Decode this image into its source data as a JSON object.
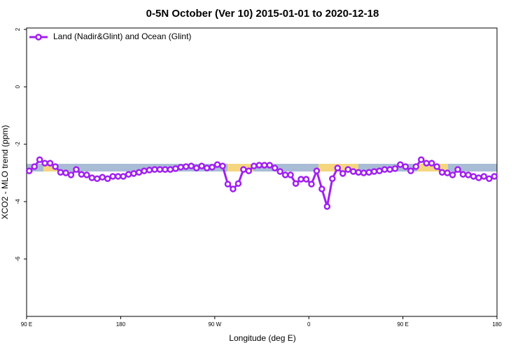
{
  "chart_data": {
    "type": "line",
    "title": "0-5N October (Ver 10)   2015-01-01 to 2020-12-18",
    "x_label": "Longitude (deg E)",
    "y_label": "XCO2 - MLO trend (ppm)",
    "xlim": [
      90,
      540
    ],
    "ylim": [
      -8,
      2.05
    ],
    "xticks": [
      {
        "value": 90,
        "label": "90 E"
      },
      180,
      {
        "value": 270,
        "label": "90 W"
      },
      {
        "value": 360,
        "label": "0"
      },
      {
        "value": 450,
        "label": "90 E"
      },
      {
        "value": 540,
        "label": "180"
      }
    ],
    "yticks": [
      2,
      0,
      -2,
      -4,
      -6
    ],
    "legend": "top-left",
    "x": [
      92.5,
      97.5,
      102.5,
      107.5,
      112.5,
      117.5,
      122.5,
      127.5,
      132.5,
      137.5,
      142.5,
      147.5,
      152.5,
      157.5,
      162.5,
      167.5,
      172.5,
      177.5,
      182.5,
      187.5,
      192.5,
      197.5,
      202.5,
      207.5,
      212.5,
      217.5,
      222.5,
      227.5,
      232.5,
      237.5,
      242.5,
      247.5,
      252.5,
      257.5,
      262.5,
      267.5,
      272.5,
      277.5,
      282.5,
      287.5,
      292.5,
      297.5,
      302.5,
      307.5,
      312.5,
      317.5,
      322.5,
      327.5,
      332.5,
      337.5,
      342.5,
      347.5,
      352.5,
      357.5,
      362.5,
      367.5,
      372.5,
      377.5,
      382.5,
      387.5,
      392.5,
      397.5,
      402.5,
      407.5,
      412.5,
      417.5,
      422.5,
      427.5,
      432.5,
      437.5,
      442.5,
      447.5,
      452.5,
      457.5,
      462.5,
      467.5,
      472.5,
      477.5,
      482.5,
      487.5,
      492.5,
      497.5,
      502.5,
      507.5,
      512.5,
      517.5,
      522.5,
      527.5,
      532.5,
      537.5
    ],
    "series": [
      {
        "name": "Land (Nadir&Glint) and Ocean (Glint)",
        "color": "#a020f0",
        "values": [
          -2.93,
          -2.78,
          -2.54,
          -2.66,
          -2.66,
          -2.78,
          -2.98,
          -3.0,
          -3.07,
          -2.88,
          -3.05,
          -3.07,
          -3.17,
          -3.2,
          -3.15,
          -3.2,
          -3.12,
          -3.12,
          -3.12,
          -3.05,
          -3.02,
          -2.98,
          -2.93,
          -2.9,
          -2.88,
          -2.88,
          -2.88,
          -2.88,
          -2.85,
          -2.8,
          -2.78,
          -2.76,
          -2.83,
          -2.76,
          -2.83,
          -2.8,
          -2.71,
          -2.76,
          -3.39,
          -3.56,
          -3.37,
          -2.88,
          -2.93,
          -2.76,
          -2.73,
          -2.73,
          -2.73,
          -2.83,
          -2.95,
          -3.07,
          -3.07,
          -3.37,
          -3.22,
          -3.22,
          -3.39,
          -2.93,
          -3.56,
          -4.17,
          -3.2,
          -2.83,
          -3.02,
          -2.88,
          -2.95,
          -2.98,
          -3.0,
          -2.98,
          -2.95,
          -2.93,
          -2.88,
          -2.88,
          -2.85,
          -2.71,
          -2.78,
          -2.93,
          -2.78,
          -2.54,
          -2.66,
          -2.66,
          -2.78,
          -2.98,
          -3.0,
          -3.07,
          -2.88,
          -3.05,
          -3.07,
          -3.12,
          -3.17,
          -3.12,
          -3.2,
          -3.12
        ]
      }
    ]
  }
}
